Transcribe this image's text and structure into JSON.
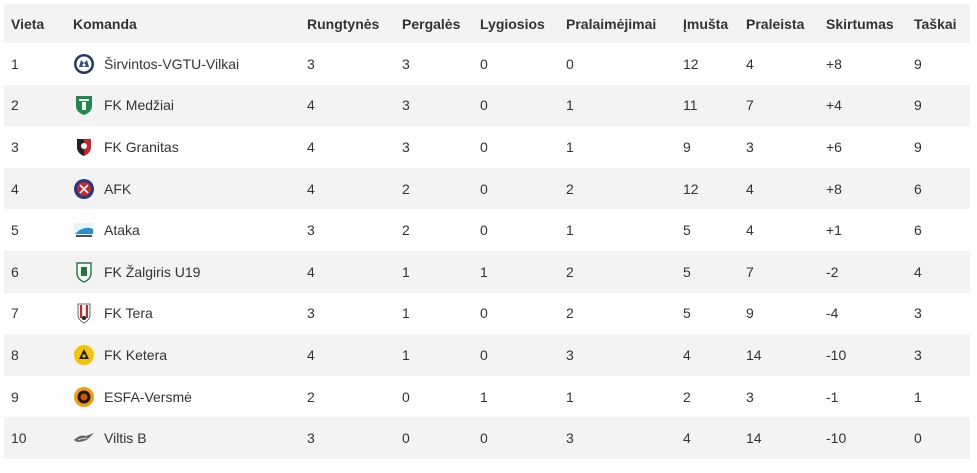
{
  "headers": {
    "rank": "Vieta",
    "team": "Komanda",
    "played": "Rungtynės",
    "wins": "Pergalės",
    "draws": "Lygiosios",
    "losses": "Pralaimėjimai",
    "scored": "Įmušta",
    "conceded": "Praleista",
    "diff": "Skirtumas",
    "points": "Taškai"
  },
  "rows": [
    {
      "rank": "1",
      "team": "Širvintos-VGTU-Vilkai",
      "logo": "wolf-logo",
      "played": "3",
      "wins": "3",
      "draws": "0",
      "losses": "0",
      "scored": "12",
      "conceded": "4",
      "diff": "+8",
      "points": "9"
    },
    {
      "rank": "2",
      "team": "FK Medžiai",
      "logo": "tree-shield-logo",
      "played": "4",
      "wins": "3",
      "draws": "0",
      "losses": "1",
      "scored": "11",
      "conceded": "7",
      "diff": "+4",
      "points": "9"
    },
    {
      "rank": "3",
      "team": "FK Granitas",
      "logo": "red-shield-logo",
      "played": "4",
      "wins": "3",
      "draws": "0",
      "losses": "1",
      "scored": "9",
      "conceded": "3",
      "diff": "+6",
      "points": "9"
    },
    {
      "rank": "4",
      "team": "AFK",
      "logo": "blue-red-circle-logo",
      "played": "4",
      "wins": "2",
      "draws": "0",
      "losses": "2",
      "scored": "12",
      "conceded": "4",
      "diff": "+8",
      "points": "6"
    },
    {
      "rank": "5",
      "team": "Ataka",
      "logo": "ataka-logo",
      "played": "3",
      "wins": "2",
      "draws": "0",
      "losses": "1",
      "scored": "5",
      "conceded": "4",
      "diff": "+1",
      "points": "6"
    },
    {
      "rank": "6",
      "team": "FK Žalgiris U19",
      "logo": "green-shield-logo",
      "played": "4",
      "wins": "1",
      "draws": "1",
      "losses": "2",
      "scored": "5",
      "conceded": "7",
      "diff": "-2",
      "points": "4"
    },
    {
      "rank": "7",
      "team": "FK Tera",
      "logo": "striped-shield-logo",
      "played": "3",
      "wins": "1",
      "draws": "0",
      "losses": "2",
      "scored": "5",
      "conceded": "9",
      "diff": "-4",
      "points": "3"
    },
    {
      "rank": "8",
      "team": "FK Ketera",
      "logo": "yellow-circle-logo",
      "played": "4",
      "wins": "1",
      "draws": "0",
      "losses": "3",
      "scored": "4",
      "conceded": "14",
      "diff": "-10",
      "points": "3"
    },
    {
      "rank": "9",
      "team": "ESFA-Versmė",
      "logo": "orange-circle-logo",
      "played": "2",
      "wins": "0",
      "draws": "1",
      "losses": "1",
      "scored": "2",
      "conceded": "3",
      "diff": "-1",
      "points": "1"
    },
    {
      "rank": "10",
      "team": "Viltis B",
      "logo": "bird-logo",
      "played": "3",
      "wins": "0",
      "draws": "0",
      "losses": "3",
      "scored": "4",
      "conceded": "14",
      "diff": "-10",
      "points": "0"
    }
  ],
  "colors": {
    "header_bg": "#f3f3f3",
    "stripe_bg": "#f3f3f3",
    "text": "#333333"
  }
}
